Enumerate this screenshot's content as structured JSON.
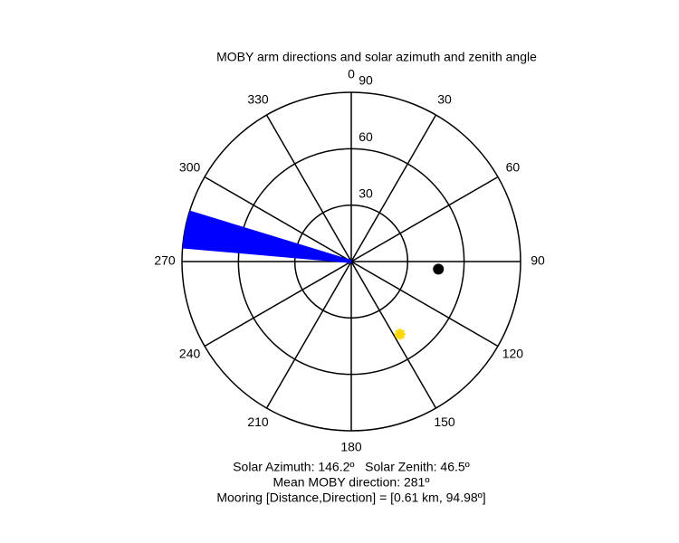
{
  "chart_data": {
    "type": "polar",
    "title": "MOBY arm directions and solar azimuth and zenith angle",
    "rlim": [
      0,
      90
    ],
    "rticks": [
      30,
      60,
      90
    ],
    "thetaticks": [
      0,
      30,
      60,
      90,
      120,
      150,
      180,
      210,
      240,
      270,
      300,
      330
    ],
    "series": [
      {
        "color": "#0000ff",
        "marker": "line",
        "theta": [
          275,
          276,
          277,
          278,
          279,
          280,
          281,
          282,
          283,
          284,
          285,
          286,
          287
        ],
        "r": [
          90,
          90,
          90,
          90,
          90,
          90,
          90,
          90,
          90,
          90,
          90,
          90,
          90
        ]
      },
      {
        "color": "#000000",
        "marker": "circle",
        "theta": [
          94.98
        ],
        "r": [
          46.5
        ]
      },
      {
        "color": "#ffd700",
        "marker": "star",
        "theta": [
          146.2
        ],
        "r": [
          46.5
        ]
      }
    ],
    "annotations": [
      "Solar Azimuth: 146.2º   Solar Zenith: 46.5º",
      "Mean MOBY direction: 281º",
      "Mooring [Distance,Direction] = [0.61 km, 94.98º]"
    ]
  }
}
